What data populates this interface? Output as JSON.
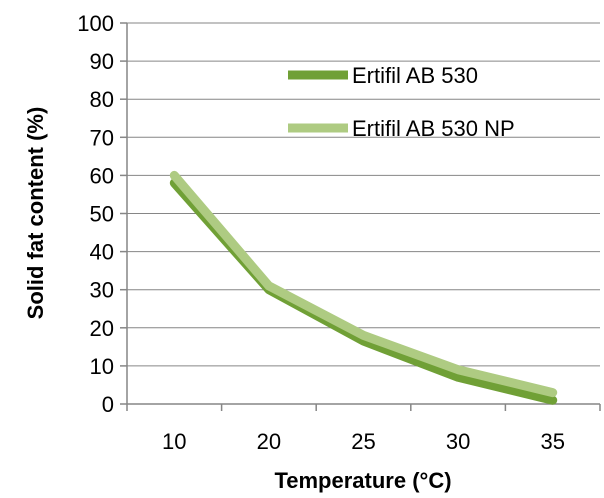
{
  "chart_data": {
    "type": "line",
    "categories": [
      "10",
      "20",
      "25",
      "30",
      "35"
    ],
    "series": [
      {
        "name": "Ertifil AB 530",
        "values": [
          58,
          30,
          16.5,
          7,
          1
        ],
        "color": "#70A036"
      },
      {
        "name": "Ertifil AB 530 NP",
        "values": [
          60,
          31,
          18,
          9,
          3
        ],
        "color": "#AECB82"
      }
    ],
    "xlabel": "Temperature (°C)",
    "ylabel": "Solid fat content (%)",
    "ylim": [
      0,
      100
    ],
    "yticks": [
      "0",
      "10",
      "20",
      "30",
      "40",
      "50",
      "60",
      "70",
      "80",
      "90",
      "100"
    ],
    "grid": true,
    "legend_position": "top-right"
  }
}
